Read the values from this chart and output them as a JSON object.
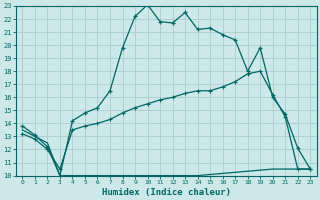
{
  "title": "",
  "xlabel": "Humidex (Indice chaleur)",
  "ylabel": "",
  "bg_color": "#cce8e8",
  "grid_color": "#aacccc",
  "line_color": "#006666",
  "xlim": [
    -0.5,
    23.5
  ],
  "ylim": [
    10,
    23
  ],
  "yticks": [
    10,
    11,
    12,
    13,
    14,
    15,
    16,
    17,
    18,
    19,
    20,
    21,
    22,
    23
  ],
  "xticks": [
    0,
    1,
    2,
    3,
    4,
    5,
    6,
    7,
    8,
    9,
    10,
    11,
    12,
    13,
    14,
    15,
    16,
    17,
    18,
    19,
    20,
    21,
    22,
    23
  ],
  "curve1_x": [
    0,
    1,
    2,
    3,
    4,
    5,
    6,
    7,
    8,
    9,
    10,
    11,
    12,
    13,
    14,
    15,
    16,
    17,
    18,
    19,
    20,
    21,
    22,
    23
  ],
  "curve1_y": [
    13.8,
    13.1,
    12.2,
    10.0,
    14.2,
    14.8,
    15.2,
    16.5,
    19.8,
    22.2,
    23.1,
    21.8,
    21.7,
    22.5,
    21.2,
    21.3,
    20.8,
    20.4,
    18.0,
    19.8,
    16.0,
    14.7,
    12.1,
    10.5
  ],
  "curve2_x": [
    0,
    1,
    2,
    3,
    4,
    5,
    6,
    7,
    8,
    9,
    10,
    11,
    12,
    13,
    14,
    15,
    16,
    17,
    18,
    19,
    20,
    21,
    22,
    23
  ],
  "curve2_y": [
    13.2,
    12.8,
    12.0,
    10.5,
    13.5,
    13.8,
    14.0,
    14.3,
    14.8,
    15.2,
    15.5,
    15.8,
    16.0,
    16.3,
    16.5,
    16.5,
    16.8,
    17.2,
    17.8,
    18.0,
    16.2,
    14.5,
    10.5,
    10.5
  ],
  "curve3_x": [
    0,
    1,
    2,
    3,
    4,
    10,
    14,
    20,
    21,
    22,
    23
  ],
  "curve3_y": [
    13.5,
    13.0,
    12.5,
    10.0,
    10.0,
    10.0,
    10.0,
    10.5,
    10.5,
    10.5,
    10.5
  ]
}
